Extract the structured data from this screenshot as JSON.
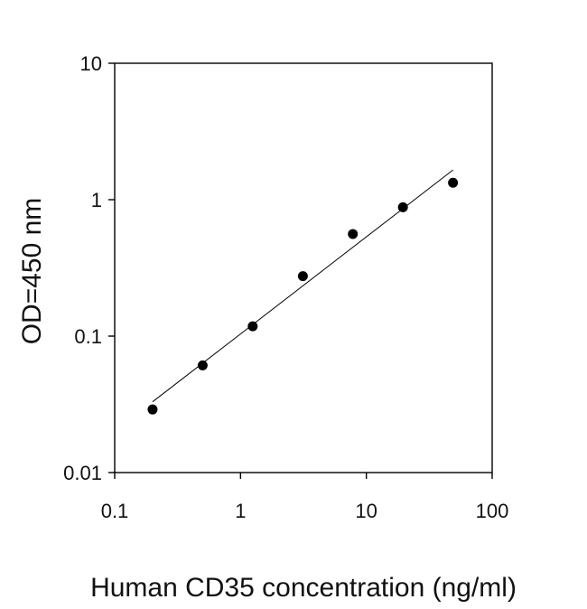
{
  "chart_data": {
    "type": "scatter",
    "title": "",
    "xlabel": "Human CD35 concentration (ng/ml)",
    "ylabel": "OD=450 nm",
    "xscale": "log",
    "yscale": "log",
    "xlim": [
      0.1,
      100
    ],
    "ylim": [
      0.01,
      10
    ],
    "xticks": [
      0.1,
      1,
      10,
      100
    ],
    "xtick_labels": [
      "0.1",
      "1",
      "10",
      "100"
    ],
    "yticks": [
      0.01,
      0.1,
      1,
      10
    ],
    "ytick_labels": [
      "0.01",
      "0.1",
      "1",
      "10"
    ],
    "grid": false,
    "legend": "none",
    "series": [
      {
        "x": [
          0.2,
          0.5,
          1.25,
          3.13,
          7.81,
          19.53,
          48.83
        ],
        "y": [
          0.029,
          0.061,
          0.118,
          0.275,
          0.56,
          0.88,
          1.33
        ],
        "marker": "circle",
        "color": "#000000"
      }
    ],
    "fit_line": {
      "x": [
        0.2,
        48.83
      ],
      "y": [
        0.033,
        1.65
      ],
      "color": "#000000"
    }
  }
}
